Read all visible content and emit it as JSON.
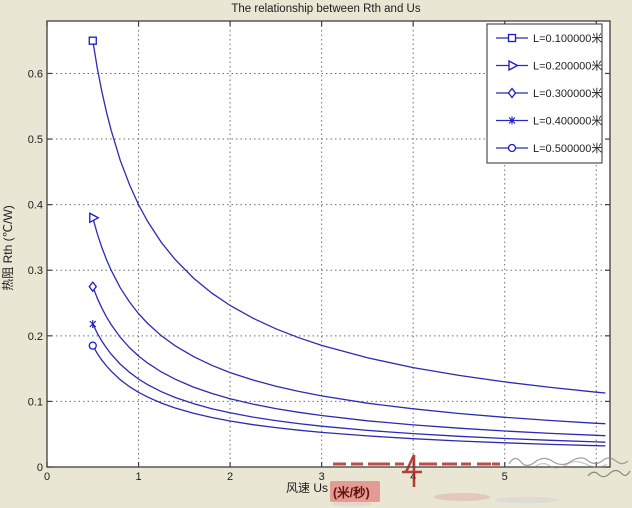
{
  "title": "The relationship between Rth and Us",
  "axes": {
    "xlabel": "风速  Us",
    "xlabel_unit": "(米/秒)",
    "ylabel": "热阻  Rth (℃/W)",
    "x_tick_labels": [
      "0",
      "1",
      "2",
      "3",
      "4",
      "5"
    ],
    "x_tick_values": [
      0,
      1,
      2,
      3,
      4,
      5
    ],
    "x_gridlines": [
      1,
      2,
      3,
      4,
      5,
      6
    ],
    "y_tick_labels": [
      "0",
      "0.1",
      "0.2",
      "0.3",
      "0.4",
      "0.5",
      "0.6"
    ],
    "y_tick_values": [
      0,
      0.1,
      0.2,
      0.3,
      0.4,
      0.5,
      0.6
    ],
    "xlim": [
      0,
      6.15
    ],
    "ylim": [
      0,
      0.68
    ],
    "grid": "dotted"
  },
  "legend": {
    "position": "northeast",
    "items": [
      {
        "label": "L=0.100000米",
        "marker": "square"
      },
      {
        "label": "L=0.200000米",
        "marker": "triangle-right"
      },
      {
        "label": "L=0.300000米",
        "marker": "diamond"
      },
      {
        "label": "L=0.400000米",
        "marker": "asterisk"
      },
      {
        "label": "L=0.500000米",
        "marker": "circle"
      }
    ]
  },
  "chart_data": {
    "type": "line",
    "title": "The relationship between Rth and Us",
    "xlabel": "风速 Us (米/秒)",
    "ylabel": "热阻 Rth (℃/W)",
    "xlim": [
      0,
      6.15
    ],
    "ylim": [
      0,
      0.68
    ],
    "grid": "dotted",
    "legend_position": "northeast",
    "x": [
      0.5,
      0.55,
      0.6,
      0.65,
      0.7,
      0.8,
      0.9,
      1.0,
      1.1,
      1.25,
      1.4,
      1.6,
      1.8,
      2.0,
      2.25,
      2.5,
      2.75,
      3.0,
      3.5,
      4.0,
      4.5,
      5.0,
      5.5,
      6.0,
      6.1
    ],
    "series": [
      {
        "name": "L=0.100000米",
        "marker": "square",
        "values": [
          0.65,
          0.6081,
          0.5721,
          0.5409,
          0.5136,
          0.4677,
          0.4308,
          0.4001,
          0.3743,
          0.3423,
          0.3162,
          0.288,
          0.2652,
          0.2463,
          0.2268,
          0.2107,
          0.1971,
          0.1854,
          0.1665,
          0.1516,
          0.1396,
          0.1297,
          0.1214,
          0.1141,
          0.1128
        ]
      },
      {
        "name": "L=0.200000米",
        "marker": "triangle-right",
        "values": [
          0.38,
          0.3555,
          0.3345,
          0.3162,
          0.3002,
          0.2734,
          0.2518,
          0.2339,
          0.2188,
          0.2001,
          0.1848,
          0.1683,
          0.155,
          0.144,
          0.1326,
          0.1232,
          0.1152,
          0.1084,
          0.0973,
          0.0887,
          0.0816,
          0.0758,
          0.0709,
          0.0667,
          0.066
        ]
      },
      {
        "name": "L=0.300000米",
        "marker": "diamond",
        "values": [
          0.275,
          0.2573,
          0.2421,
          0.2289,
          0.2173,
          0.1979,
          0.1822,
          0.1693,
          0.1584,
          0.1448,
          0.1338,
          0.1218,
          0.1122,
          0.1042,
          0.0959,
          0.0891,
          0.0834,
          0.0785,
          0.0704,
          0.0642,
          0.0591,
          0.0549,
          0.0513,
          0.0483,
          0.0477
        ]
      },
      {
        "name": "L=0.400000米",
        "marker": "asterisk",
        "values": [
          0.218,
          0.2039,
          0.1919,
          0.1814,
          0.1722,
          0.1569,
          0.1445,
          0.1342,
          0.1255,
          0.1148,
          0.106,
          0.0966,
          0.0889,
          0.0826,
          0.0761,
          0.0707,
          0.0661,
          0.0622,
          0.0558,
          0.0509,
          0.0468,
          0.0435,
          0.0407,
          0.0383,
          0.0378
        ]
      },
      {
        "name": "L=0.500000米",
        "marker": "circle",
        "values": [
          0.185,
          0.1731,
          0.1628,
          0.154,
          0.1462,
          0.1331,
          0.1226,
          0.1139,
          0.1065,
          0.0974,
          0.09,
          0.082,
          0.0755,
          0.0701,
          0.0645,
          0.06,
          0.0561,
          0.0528,
          0.0474,
          0.0432,
          0.0397,
          0.0369,
          0.0345,
          0.0325,
          0.0321
        ]
      }
    ]
  },
  "colors": {
    "background": "#e9e6d4",
    "plot_background": "#ffffff",
    "curve_blue": "#2b2bb4",
    "marker_blue": "#1a1ac8",
    "grid_gray": "#6e6e6e",
    "box_gray": "#3f3f3f",
    "watermark_red": "#b22f26",
    "unit_highlight_pink": "#e2948c",
    "unit_text_darkred": "#6b100a",
    "scribble_gray": "#8b8b80"
  }
}
